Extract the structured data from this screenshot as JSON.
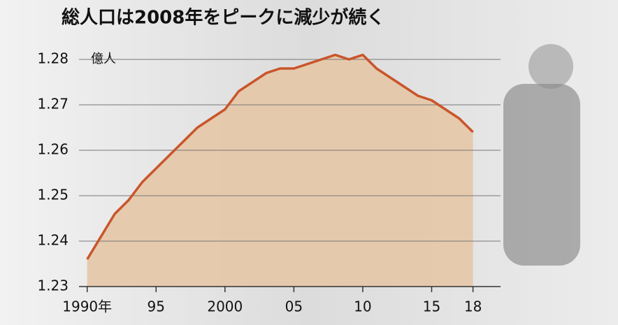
{
  "chart_data": {
    "type": "area",
    "title": "総人口は2008年をピークに減少が続く",
    "ylabel": "億人",
    "x": [
      1990,
      1991,
      1992,
      1993,
      1994,
      1995,
      1996,
      1997,
      1998,
      1999,
      2000,
      2001,
      2002,
      2003,
      2004,
      2005,
      2006,
      2007,
      2008,
      2009,
      2010,
      2011,
      2012,
      2013,
      2014,
      2015,
      2016,
      2017,
      2018
    ],
    "values": [
      1.236,
      1.241,
      1.246,
      1.249,
      1.253,
      1.256,
      1.259,
      1.262,
      1.265,
      1.267,
      1.269,
      1.273,
      1.275,
      1.277,
      1.278,
      1.278,
      1.279,
      1.28,
      1.281,
      1.28,
      1.281,
      1.278,
      1.276,
      1.274,
      1.272,
      1.271,
      1.269,
      1.267,
      1.264
    ],
    "color": "#c9552a",
    "fill_color": "#e6c6a6",
    "xlim": [
      1989,
      2020
    ],
    "xticks": [
      {
        "value": 1990,
        "label": "1990年"
      },
      {
        "value": 1995,
        "label": "95"
      },
      {
        "value": 2000,
        "label": "2000"
      },
      {
        "value": 2005,
        "label": "05"
      },
      {
        "value": 2010,
        "label": "10"
      },
      {
        "value": 2015,
        "label": "15"
      },
      {
        "value": 2018,
        "label": "18"
      }
    ],
    "ylim": [
      1.23,
      1.282
    ],
    "yticks": [
      1.23,
      1.24,
      1.25,
      1.26,
      1.27,
      1.28
    ],
    "grid": true
  }
}
